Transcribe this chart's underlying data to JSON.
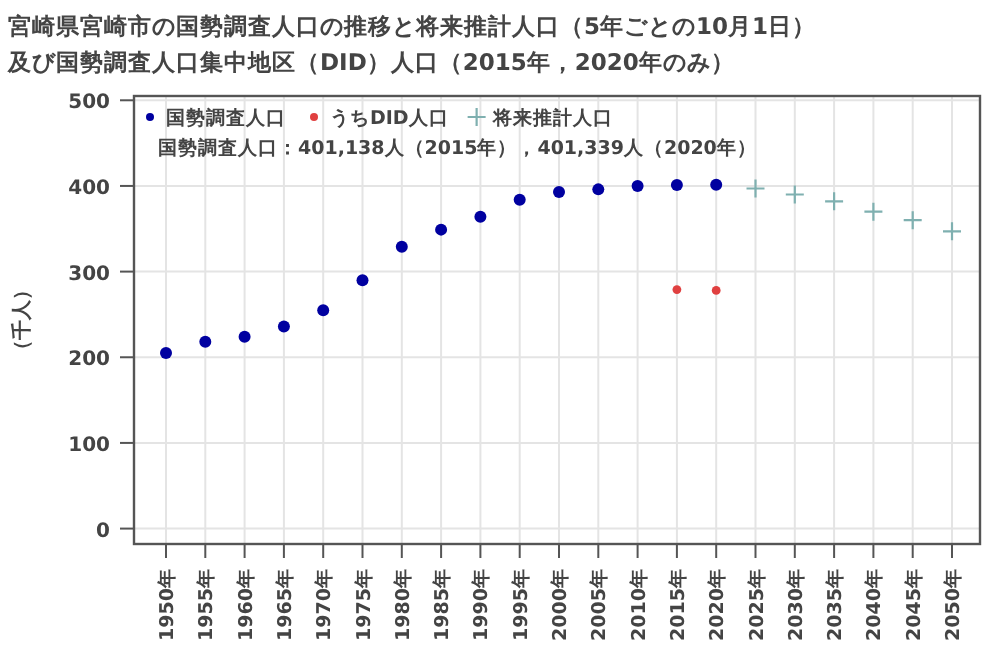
{
  "chart_data": {
    "type": "scatter",
    "title": "宮崎県宮崎市の国勢調査人口の推移と将来推計人口（5年ごとの10月1日）",
    "subtitle": "及び国勢調査人口集中地区（DID）人口（2015年，2020年のみ）",
    "ylabel": "（千人）",
    "categories": [
      "1950年",
      "1955年",
      "1960年",
      "1965年",
      "1970年",
      "1975年",
      "1980年",
      "1985年",
      "1990年",
      "1995年",
      "2000年",
      "2005年",
      "2010年",
      "2015年",
      "2020年",
      "2025年",
      "2030年",
      "2035年",
      "2040年",
      "2045年",
      "2050年"
    ],
    "series": [
      {
        "name": "国勢調査人口",
        "color": "#0000a0",
        "marker": "circle",
        "values": [
          205,
          218,
          224,
          236,
          255,
          290,
          329,
          349,
          364,
          384,
          393,
          396,
          400,
          401.138,
          401.339,
          null,
          null,
          null,
          null,
          null,
          null
        ]
      },
      {
        "name": "うちDID人口",
        "color": "#e04040",
        "marker": "circle",
        "values": [
          null,
          null,
          null,
          null,
          null,
          null,
          null,
          null,
          null,
          null,
          null,
          null,
          null,
          279,
          278,
          null,
          null,
          null,
          null,
          null,
          null
        ]
      },
      {
        "name": "将来推計人口",
        "color": "#7fb0b0",
        "marker": "cross",
        "values": [
          null,
          null,
          null,
          null,
          null,
          null,
          null,
          null,
          null,
          null,
          null,
          null,
          null,
          null,
          null,
          397,
          390,
          382,
          370,
          360,
          347
        ]
      }
    ],
    "annotations": [
      "国勢調査人口：401,138人（2015年），401,339人（2020年）"
    ],
    "ylim": [
      -18,
      505
    ],
    "yticks": [
      0,
      100,
      200,
      300,
      400,
      500
    ],
    "grid": true,
    "legend": "top left"
  }
}
